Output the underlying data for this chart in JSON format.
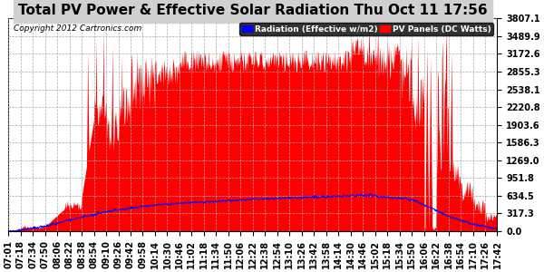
{
  "title": "Total PV Power & Effective Solar Radiation Thu Oct 11 17:56",
  "copyright": "Copyright 2012 Cartronics.com",
  "legend_radiation": "Radiation (Effective w/m2)",
  "legend_pv": "PV Panels (DC Watts)",
  "ylabel_values": [
    0.0,
    317.3,
    634.5,
    951.8,
    1269.0,
    1586.3,
    1903.6,
    2220.8,
    2538.1,
    2855.3,
    3172.6,
    3489.9,
    3807.1
  ],
  "ymax": 3807.1,
  "background_color": "#ffffff",
  "plot_bg_color": "#ffffff",
  "grid_color": "#aaaaaa",
  "red_color": "#ff0000",
  "blue_color": "#0000ff",
  "title_color": "#000000",
  "title_bg": "#c0c0c0",
  "title_fontsize": 11,
  "axis_fontsize": 7,
  "xtick_labels": [
    "07:01",
    "07:18",
    "07:34",
    "07:50",
    "08:06",
    "08:22",
    "08:38",
    "08:54",
    "09:10",
    "09:26",
    "09:42",
    "09:58",
    "10:14",
    "10:30",
    "10:46",
    "11:02",
    "11:18",
    "11:34",
    "11:50",
    "12:06",
    "12:22",
    "12:38",
    "12:54",
    "13:10",
    "13:26",
    "13:42",
    "13:58",
    "14:14",
    "14:30",
    "14:46",
    "15:02",
    "15:18",
    "15:34",
    "15:50",
    "16:06",
    "16:22",
    "16:38",
    "16:54",
    "17:10",
    "17:26",
    "17:42"
  ]
}
